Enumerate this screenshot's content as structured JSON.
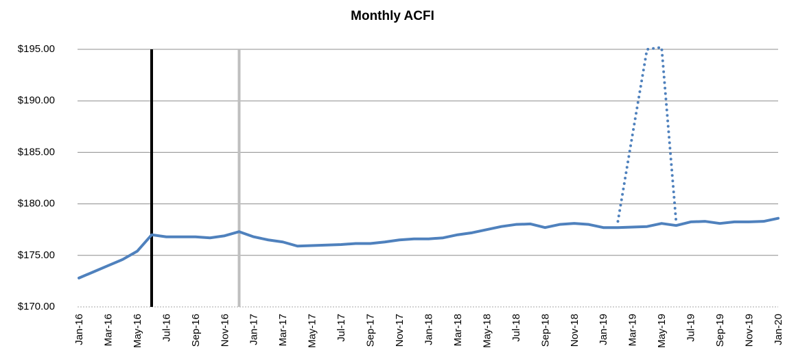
{
  "chart_data": {
    "type": "line",
    "title": "Monthly ACFI",
    "categories": [
      "Jan-16",
      null,
      "Mar-16",
      null,
      "May-16",
      null,
      "Jul-16",
      null,
      "Sep-16",
      null,
      "Nov-16",
      null,
      "Jan-17",
      null,
      "Mar-17",
      null,
      "May-17",
      null,
      "Jul-17",
      null,
      "Sep-17",
      null,
      "Nov-17",
      null,
      "Jan-18",
      null,
      "Mar-18",
      null,
      "May-18",
      null,
      "Jul-18",
      null,
      "Sep-18",
      null,
      "Nov-18",
      null,
      "Jan-19",
      null,
      "Mar-19",
      null,
      "May-19",
      null,
      "Jul-19",
      null,
      "Sep-19",
      null,
      "Nov-19",
      null,
      "Jan-20"
    ],
    "series": [
      {
        "color": "#4f81bd",
        "style": "solid",
        "values": [
          172.8,
          173.4,
          174.0,
          174.6,
          175.4,
          177.0,
          176.8,
          176.8,
          176.8,
          176.7,
          176.9,
          177.3,
          176.8,
          176.5,
          176.3,
          175.9,
          175.95,
          176.0,
          176.05,
          176.15,
          176.15,
          176.3,
          176.5,
          176.6,
          176.6,
          176.7,
          177.0,
          177.2,
          177.5,
          177.8,
          178.0,
          178.05,
          177.7,
          178.0,
          178.1,
          178.0,
          177.7,
          177.7,
          177.75,
          177.8,
          178.1,
          177.9,
          178.25,
          178.3,
          178.1,
          178.25,
          178.25,
          178.3,
          178.6
        ]
      },
      {
        "color": "#4f81bd",
        "style": "dotted",
        "values": [
          null,
          null,
          null,
          null,
          null,
          null,
          null,
          null,
          null,
          null,
          null,
          null,
          null,
          null,
          null,
          null,
          null,
          null,
          null,
          null,
          null,
          null,
          null,
          null,
          null,
          null,
          null,
          null,
          null,
          null,
          null,
          null,
          null,
          null,
          null,
          null,
          null,
          178.3,
          186.7,
          195.0,
          195.2,
          178.2,
          null,
          null,
          null,
          null,
          null,
          null,
          null
        ]
      }
    ],
    "ylim": [
      170,
      195
    ],
    "yticks": [
      {
        "value": 170,
        "label": "$170.00"
      },
      {
        "value": 175,
        "label": "$175.00"
      },
      {
        "value": 180,
        "label": "$180.00"
      },
      {
        "value": 185,
        "label": "$185.00"
      },
      {
        "value": 190,
        "label": "$190.00"
      },
      {
        "value": 195,
        "label": "$195.00"
      }
    ],
    "grid": true
  }
}
